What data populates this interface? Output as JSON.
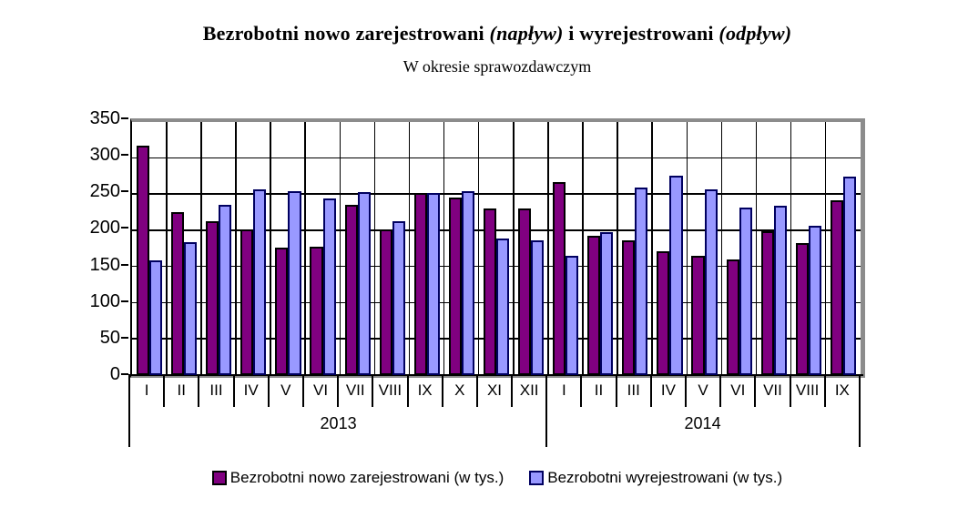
{
  "title": {
    "part1": "Bezrobotni nowo zarejestrowani ",
    "part2": "(napływ)",
    "part3": " i wyrejestrowani ",
    "part4": "(odpływ)"
  },
  "subtitle": "W okresie sprawozdawczym",
  "chart_data": {
    "type": "bar",
    "title": "Bezrobotni nowo zarejestrowani (napływ) i wyrejestrowani (odpływ)",
    "subtitle": "W okresie sprawozdawczym",
    "categories": [
      "I",
      "II",
      "III",
      "IV",
      "V",
      "VI",
      "VII",
      "VIII",
      "IX",
      "X",
      "XI",
      "XII",
      "I",
      "II",
      "III",
      "IV",
      "V",
      "VI",
      "VII",
      "VIII",
      "IX"
    ],
    "year_groups": [
      {
        "label": "2013",
        "span": 12
      },
      {
        "label": "2014",
        "span": 9
      }
    ],
    "series": [
      {
        "name": "Bezrobotni nowo zarejestrowani (w tys.)",
        "color": "#800080",
        "border_color": "#000000",
        "values": [
          317,
          225,
          213,
          201,
          176,
          177,
          236,
          202,
          252,
          246,
          230,
          230,
          267,
          193,
          186,
          171,
          165,
          160,
          199,
          182,
          242
        ]
      },
      {
        "name": "Bezrobotni wyrejestrowani (w tys.)",
        "color": "#9999FF",
        "border_color": "#000060",
        "values": [
          159,
          184,
          236,
          257,
          254,
          244,
          253,
          213,
          252,
          254,
          189,
          186,
          165,
          198,
          260,
          276,
          257,
          232,
          234,
          206,
          274
        ]
      }
    ],
    "ylim": [
      0,
      350
    ],
    "yticks": [
      0,
      50,
      100,
      150,
      200,
      250,
      300,
      350
    ],
    "grid": "horizontal gridlines and vertical category separators",
    "legend_position": "bottom",
    "xlabel": "",
    "ylabel": ""
  },
  "colors": {
    "plot_border_gray": "#8C8C8C",
    "axis_black": "#000000",
    "background": "#FFFFFF"
  }
}
